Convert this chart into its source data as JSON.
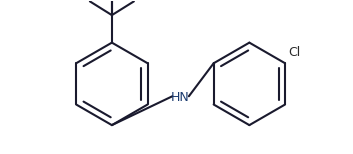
{
  "bg_color": "#ffffff",
  "line_color": "#1a1a2e",
  "line_width": 1.5,
  "fig_width": 3.53,
  "fig_height": 1.54,
  "dpi": 100,
  "cl_color": "#8B4513",
  "cl_label": "Cl",
  "hn_label": "HN",
  "font_size_cl": 9,
  "font_size_hn": 9
}
